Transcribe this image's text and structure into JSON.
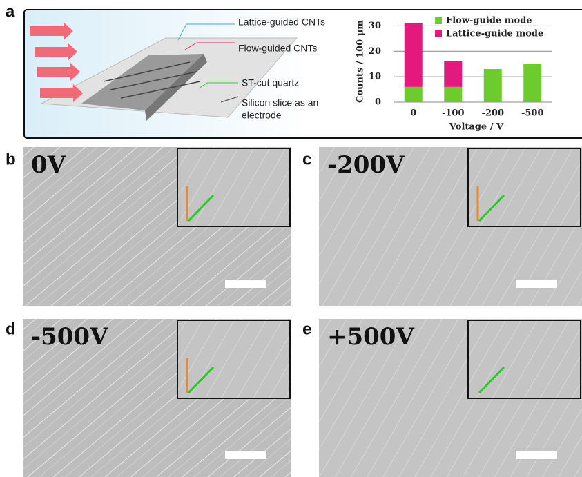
{
  "panel_labels": [
    "a",
    "b",
    "c",
    "d",
    "e"
  ],
  "diagram": {
    "labels": [
      "Lattice-guided CNTs",
      "Flow-guided CNTs",
      "ST-cut quartz"
    ],
    "electrode_label": [
      "Silicon slice as an",
      "electrode"
    ]
  },
  "chart_data": {
    "type": "bar",
    "stacked": true,
    "categories": [
      "0",
      "-100",
      "-200",
      "-500"
    ],
    "series": [
      {
        "name": "Flow-guide mode",
        "color": "#6ccc2e",
        "values": [
          6,
          6,
          13,
          15
        ]
      },
      {
        "name": "Lattice-guide mode",
        "color": "#e3197e",
        "values": [
          25,
          10,
          0,
          0
        ]
      }
    ],
    "ylim": [
      0,
      32
    ],
    "yticks": [
      0,
      10,
      20,
      30
    ],
    "grid": true,
    "xlabel": "Voltage / V",
    "ylabel": "Counts / 100 μm",
    "legend": "top-right"
  },
  "image_labels": [
    "0V",
    "-200V",
    "-500V",
    "+500V"
  ]
}
